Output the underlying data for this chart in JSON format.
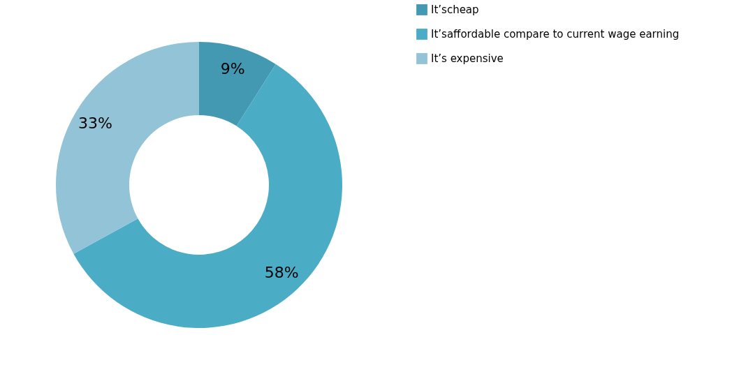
{
  "chart_data": {
    "type": "donut",
    "categories": [
      "It’scheap",
      "It’saffordable compare to current wage earning",
      "It’s expensive"
    ],
    "values": [
      9,
      58,
      33
    ],
    "colors": [
      "#4398b2",
      "#4bacc6",
      "#92c3d6"
    ],
    "value_labels": [
      "9%",
      "58%",
      "33%"
    ],
    "legend": "right"
  }
}
